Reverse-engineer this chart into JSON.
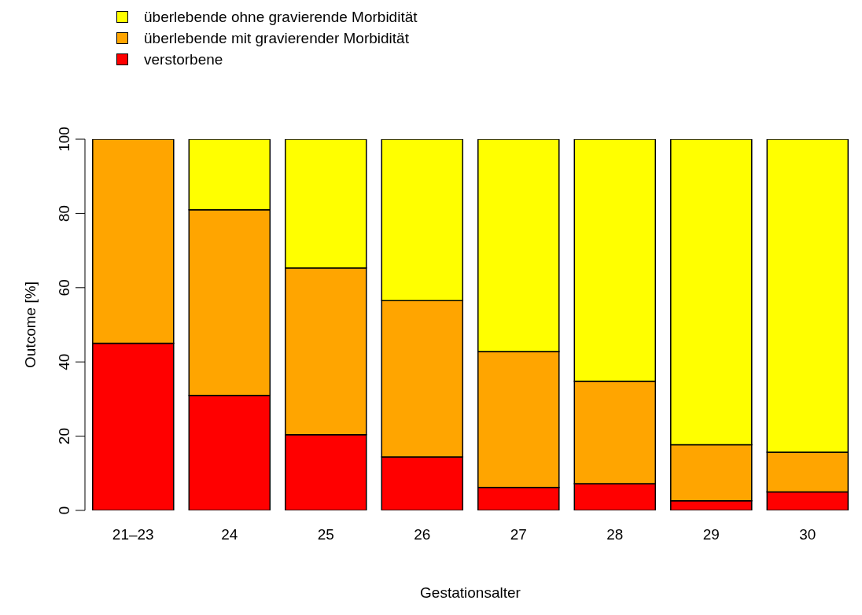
{
  "chart_data": {
    "type": "bar",
    "stacked": true,
    "xlabel": "Gestationsalter",
    "ylabel": "Outcome [%]",
    "categories": [
      "21–23",
      "24",
      "25",
      "26",
      "27",
      "28",
      "29",
      "30"
    ],
    "series": [
      {
        "name": "verstorbene",
        "color": "#ff0000",
        "values": [
          45,
          31,
          20.4,
          14.4,
          6.2,
          7.2,
          2.6,
          5.0
        ]
      },
      {
        "name": "überlebende mit gravierender Morbidität",
        "color": "#ffa500",
        "values": [
          55,
          50,
          44.9,
          42.1,
          36.6,
          27.6,
          15.1,
          10.7
        ]
      },
      {
        "name": "überlebende ohne gravierende Morbidität",
        "color": "#ffff00",
        "values": [
          0,
          19,
          34.7,
          43.5,
          57.2,
          65.2,
          82.3,
          84.3
        ]
      }
    ],
    "ylim": [
      0,
      100
    ],
    "yticks": [
      0,
      20,
      40,
      60,
      80,
      100
    ],
    "legend": "top left"
  }
}
